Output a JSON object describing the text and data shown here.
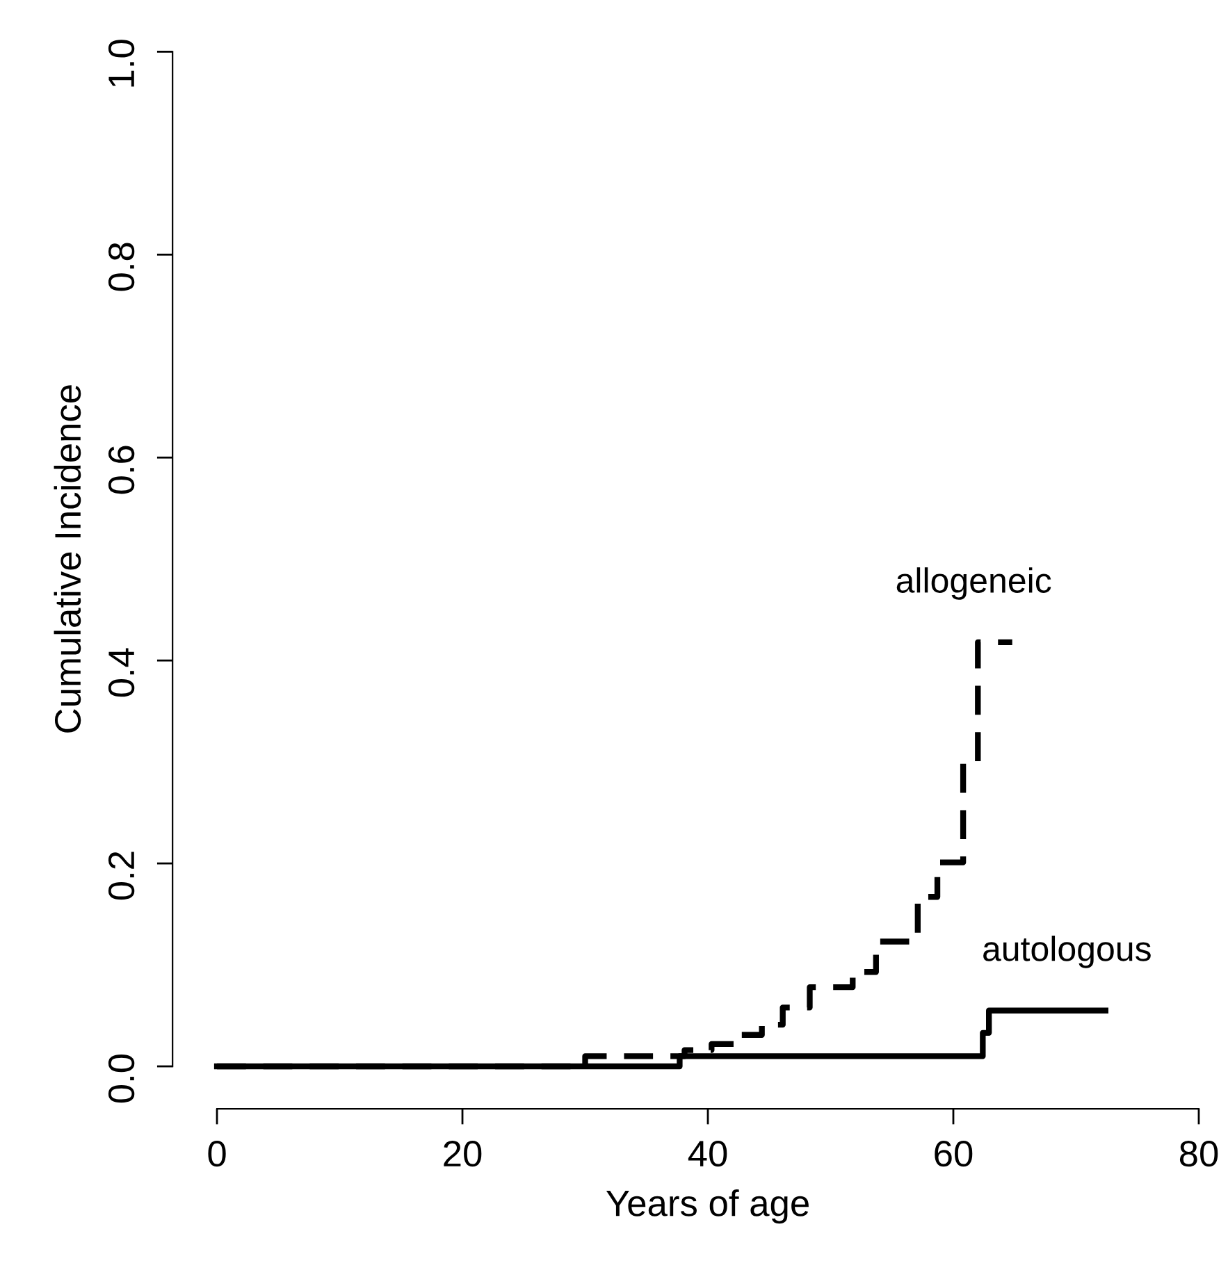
{
  "chart_data": {
    "type": "step",
    "xlabel": "Years of age",
    "ylabel": "Cumulative Incidence",
    "xlim": [
      0,
      80
    ],
    "xticks": [
      0,
      20,
      40,
      60,
      80
    ],
    "ylim": [
      0,
      1
    ],
    "yticks": [
      {
        "value": 0,
        "label": "0.0"
      },
      0.2,
      0.4,
      0.6,
      0.8,
      {
        "value": 1,
        "label": "1.0"
      }
    ],
    "tick_labels": true,
    "grid": false,
    "legend": false,
    "series": [
      {
        "name": "allogeneic",
        "color": "#000000",
        "line_style": "dashed",
        "x": [
          0,
          30,
          38.1,
          40.3,
          42.3,
          44.4,
          46.1,
          48.3,
          51.8,
          53.7,
          57.1,
          58.7,
          60.8,
          62.0,
          64.8
        ],
        "values": [
          0,
          0.01,
          0.016,
          0.022,
          0.031,
          0.041,
          0.058,
          0.078,
          0.093,
          0.123,
          0.167,
          0.201,
          0.3,
          0.418,
          0.418
        ]
      },
      {
        "name": "autologous",
        "color": "#000000",
        "line_style": "solid",
        "x": [
          0,
          37.7,
          62.4,
          62.9,
          72.4
        ],
        "values": [
          0,
          0.01,
          0.033,
          0.055,
          0.055
        ]
      }
    ]
  }
}
